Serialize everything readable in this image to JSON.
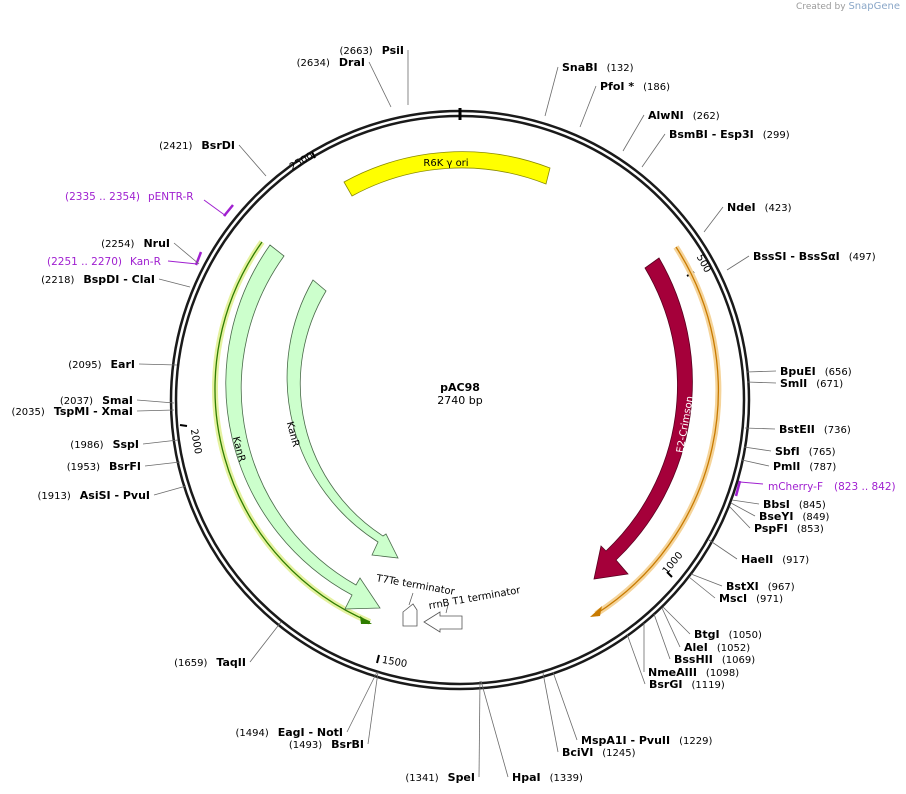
{
  "watermark": {
    "prefix": "Created by",
    "product": "SnapGene"
  },
  "plasmid": {
    "name": "pAC98",
    "length_label": "2740 bp",
    "length": 2740
  },
  "ruler": [
    {
      "label": "500",
      "bp": 500
    },
    {
      "label": "1000",
      "bp": 1000
    },
    {
      "label": "1500",
      "bp": 1500
    },
    {
      "label": "2000",
      "bp": 2000
    },
    {
      "label": "2500",
      "bp": 2500
    }
  ],
  "features": [
    {
      "name": "R6K γ ori",
      "color": "#ffff00",
      "type": "ori"
    },
    {
      "name": "E2-Crimson",
      "color": "#a5003a",
      "type": "cds",
      "direction": "cw"
    },
    {
      "name": "KanR",
      "color": "#ccffcc",
      "type": "cds",
      "direction": "ccw"
    },
    {
      "name": "KanR",
      "color": "#ccffcc",
      "type": "cds",
      "direction": "ccw"
    },
    {
      "name": "T7Te terminator",
      "color": "#ffffff",
      "type": "terminator"
    },
    {
      "name": "rrnB T1 terminator",
      "color": "#ffffff",
      "type": "terminator"
    }
  ],
  "primers": [
    {
      "name": "pENTR-R",
      "range": "(2335 .. 2354)",
      "color": "#a020d0"
    },
    {
      "name": "Kan-R",
      "range": "(2251 .. 2270)",
      "color": "#a020d0"
    },
    {
      "name": "mCherry-F",
      "range": "(823 .. 842)",
      "color": "#a020d0"
    }
  ],
  "sites": [
    {
      "name": "PsiI",
      "pos": "(2663)"
    },
    {
      "name": "DraI",
      "pos": "(2634)"
    },
    {
      "name": "SnaBI",
      "pos": "(132)"
    },
    {
      "name": "PfoI *",
      "pos": "(186)"
    },
    {
      "name": "AlwNI",
      "pos": "(262)"
    },
    {
      "name": "BsmBI - Esp3I",
      "pos": "(299)"
    },
    {
      "name": "NdeI",
      "pos": "(423)"
    },
    {
      "name": "BssSI - BssSαI",
      "pos": "(497)"
    },
    {
      "name": "BpuEI",
      "pos": "(656)"
    },
    {
      "name": "SmlI",
      "pos": "(671)"
    },
    {
      "name": "BstEII",
      "pos": "(736)"
    },
    {
      "name": "SbfI",
      "pos": "(765)"
    },
    {
      "name": "PmlI",
      "pos": "(787)"
    },
    {
      "name": "BbsI",
      "pos": "(845)"
    },
    {
      "name": "BseYI",
      "pos": "(849)"
    },
    {
      "name": "PspFI",
      "pos": "(853)"
    },
    {
      "name": "HaeII",
      "pos": "(917)"
    },
    {
      "name": "BstXI",
      "pos": "(967)"
    },
    {
      "name": "MscI",
      "pos": "(971)"
    },
    {
      "name": "BtgI",
      "pos": "(1050)"
    },
    {
      "name": "AleI",
      "pos": "(1052)"
    },
    {
      "name": "BssHII",
      "pos": "(1069)"
    },
    {
      "name": "NmeAIII",
      "pos": "(1098)"
    },
    {
      "name": "BsrGI",
      "pos": "(1119)"
    },
    {
      "name": "MspA1I - PvuII",
      "pos": "(1229)"
    },
    {
      "name": "BciVI",
      "pos": "(1245)"
    },
    {
      "name": "HpaI",
      "pos": "(1339)"
    },
    {
      "name": "SpeI",
      "pos": "(1341)"
    },
    {
      "name": "BsrBI",
      "pos": "(1493)"
    },
    {
      "name": "EagI - NotI",
      "pos": "(1494)"
    },
    {
      "name": "TaqII",
      "pos": "(1659)"
    },
    {
      "name": "AsiSI - PvuI",
      "pos": "(1913)"
    },
    {
      "name": "BsrFI",
      "pos": "(1953)"
    },
    {
      "name": "SspI",
      "pos": "(1986)"
    },
    {
      "name": "TspMI - XmaI",
      "pos": "(2035)"
    },
    {
      "name": "SmaI",
      "pos": "(2037)"
    },
    {
      "name": "EarI",
      "pos": "(2095)"
    },
    {
      "name": "BspDI - ClaI",
      "pos": "(2218)"
    },
    {
      "name": "NruI",
      "pos": "(2254)"
    },
    {
      "name": "BsrDI",
      "pos": "(2421)"
    }
  ]
}
